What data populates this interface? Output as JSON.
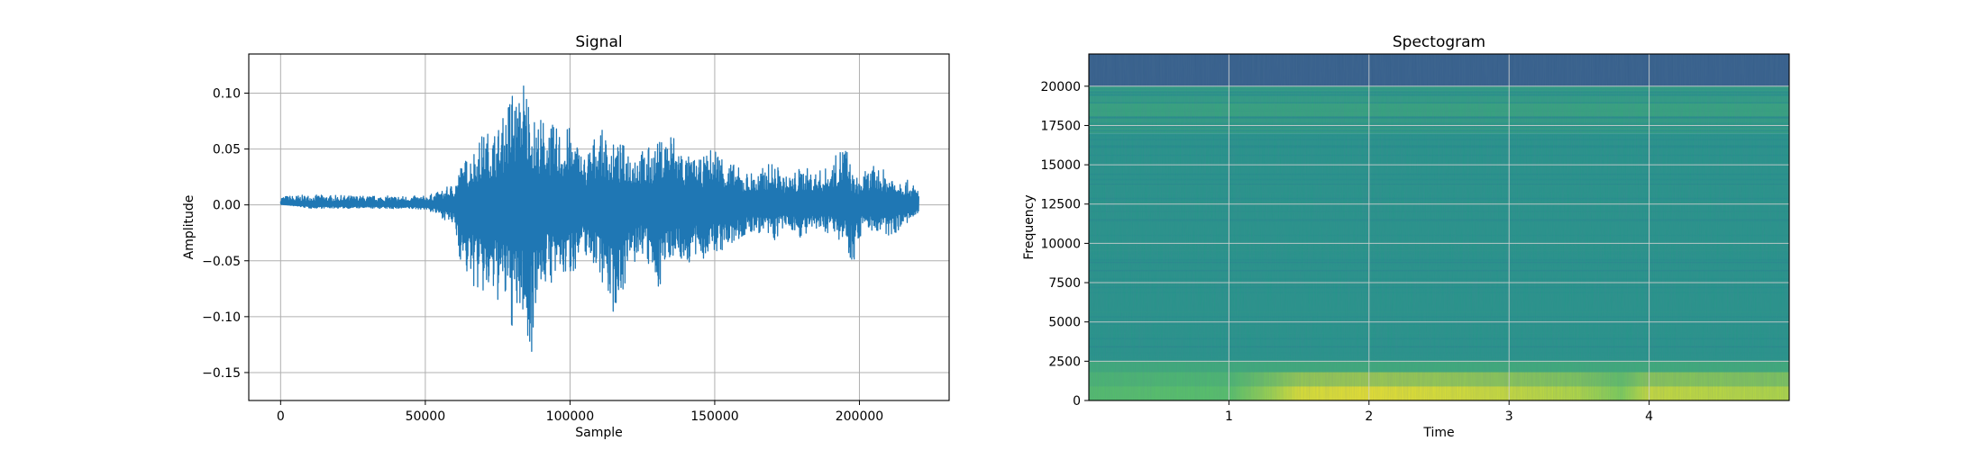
{
  "colors": {
    "signal_line": "#1f77b4",
    "grid": "#b0b0b0",
    "spectrogram_colormap": "viridis"
  },
  "chart_data": [
    {
      "type": "line",
      "title": "Signal",
      "xlabel": "Sample",
      "ylabel": "Amplitude",
      "xlim": [
        -11000,
        231000
      ],
      "ylim": [
        -0.175,
        0.135
      ],
      "xticks": [
        0,
        50000,
        100000,
        150000,
        200000
      ],
      "xtick_labels": [
        "0",
        "50000",
        "100000",
        "150000",
        "200000"
      ],
      "yticks": [
        0.1,
        0.05,
        0.0,
        -0.05,
        -0.1,
        -0.15
      ],
      "ytick_labels": [
        "0.10",
        "0.05",
        "0.00",
        "−0.05",
        "−0.10",
        "−0.15"
      ],
      "grid": true,
      "series": [
        {
          "color": "#1f77b4",
          "envelope": {
            "x": [
              0,
              10000,
              30000,
              50000,
              55000,
              60000,
              62000,
              65000,
              70000,
              75000,
              78000,
              80000,
              82000,
              84000,
              86000,
              88000,
              90000,
              95000,
              100000,
              105000,
              110000,
              115000,
              120000,
              125000,
              130000,
              135000,
              140000,
              145000,
              150000,
              155000,
              160000,
              165000,
              170000,
              175000,
              180000,
              185000,
              190000,
              195000,
              198000,
              200000,
              202000,
              205000,
              210000,
              215000,
              220500
            ],
            "max": [
              0.008,
              0.009,
              0.008,
              0.008,
              0.012,
              0.02,
              0.035,
              0.045,
              0.065,
              0.07,
              0.085,
              0.115,
              0.09,
              0.12,
              0.1,
              0.075,
              0.08,
              0.07,
              0.07,
              0.045,
              0.07,
              0.055,
              0.055,
              0.05,
              0.055,
              0.07,
              0.045,
              0.04,
              0.055,
              0.04,
              0.03,
              0.03,
              0.04,
              0.025,
              0.035,
              0.03,
              0.035,
              0.06,
              0.025,
              0.025,
              0.03,
              0.035,
              0.03,
              0.025,
              0.015
            ],
            "min": [
              0.001,
              -0.003,
              -0.003,
              -0.004,
              -0.01,
              -0.02,
              -0.05,
              -0.07,
              -0.085,
              -0.088,
              -0.095,
              -0.114,
              -0.108,
              -0.1,
              -0.16,
              -0.09,
              -0.075,
              -0.07,
              -0.065,
              -0.045,
              -0.06,
              -0.1,
              -0.065,
              -0.045,
              -0.08,
              -0.045,
              -0.055,
              -0.05,
              -0.045,
              -0.04,
              -0.03,
              -0.025,
              -0.035,
              -0.02,
              -0.03,
              -0.025,
              -0.025,
              -0.035,
              -0.055,
              -0.03,
              -0.02,
              -0.025,
              -0.03,
              -0.02,
              -0.01
            ]
          }
        }
      ]
    },
    {
      "type": "heatmap",
      "title": "Spectogram",
      "xlabel": "Time",
      "ylabel": "Frequency",
      "xlim": [
        0,
        5
      ],
      "ylim": [
        0,
        22050
      ],
      "xticks": [
        1,
        2,
        3,
        4
      ],
      "xtick_labels": [
        "1",
        "2",
        "3",
        "4"
      ],
      "yticks": [
        0,
        2500,
        5000,
        7500,
        10000,
        12500,
        15000,
        17500,
        20000
      ],
      "ytick_labels": [
        "0",
        "2500",
        "5000",
        "7500",
        "10000",
        "12500",
        "15000",
        "17500",
        "20000"
      ],
      "grid": true,
      "colormap": "viridis",
      "bands": [
        {
          "f_from": 20000,
          "f_to": 22050,
          "level": 0.3
        },
        {
          "f_from": 17000,
          "f_to": 20000,
          "level": 0.56
        },
        {
          "f_from": 2500,
          "f_to": 17000,
          "level": 0.52
        },
        {
          "f_from": 0,
          "f_to": 2500,
          "level": 0.62
        }
      ],
      "low_freq_energy": {
        "time": [
          0,
          0.5,
          1.0,
          1.3,
          1.5,
          2.0,
          2.5,
          3.0,
          3.5,
          3.8,
          4.0,
          4.5,
          5.0
        ],
        "level": [
          0.7,
          0.72,
          0.72,
          0.85,
          0.95,
          0.97,
          0.95,
          0.92,
          0.88,
          0.8,
          0.92,
          0.9,
          0.88
        ]
      }
    }
  ]
}
